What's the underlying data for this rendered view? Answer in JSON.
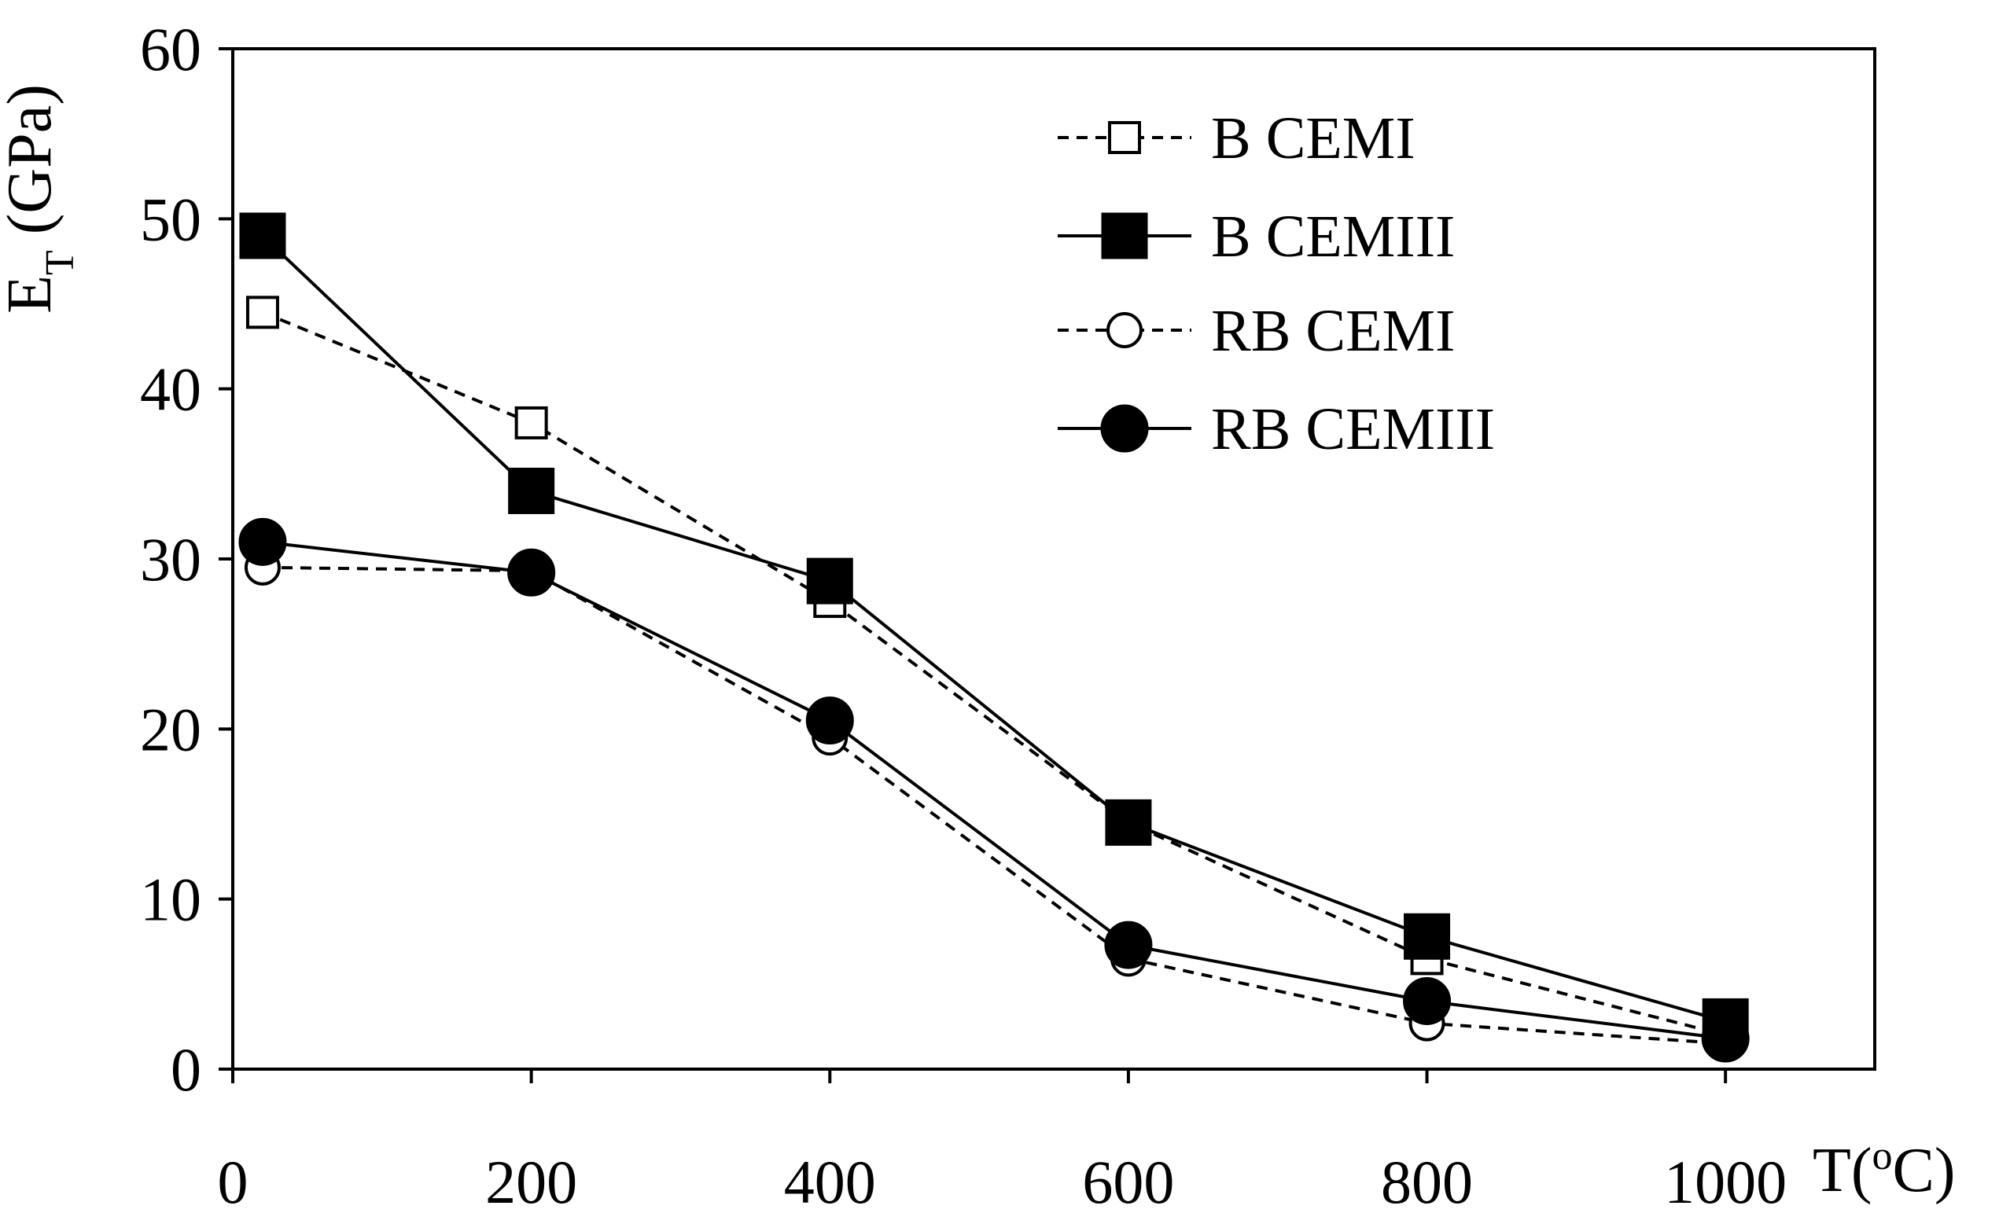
{
  "chart_data": {
    "type": "line",
    "ylabel": {
      "main": "E",
      "sub": "T",
      "rest": " (GPa)"
    },
    "xlabel": {
      "main": "T(",
      "sup": "o",
      "rest": "C)"
    },
    "xlim": [
      0,
      1100
    ],
    "ylim": [
      0,
      60
    ],
    "x_ticks": [
      0,
      200,
      400,
      600,
      800,
      1000
    ],
    "y_ticks": [
      0,
      10,
      20,
      30,
      40,
      50,
      60
    ],
    "x_tick_labels": [
      "0",
      "200",
      "400",
      "600",
      "800",
      "1000"
    ],
    "y_tick_labels": [
      "0",
      "10",
      "20",
      "30",
      "40",
      "50",
      "60"
    ],
    "grid": false,
    "legend_position": "top-right",
    "series": [
      {
        "name": "B CEMI",
        "marker": "square-open",
        "line": "dashed",
        "x": [
          20,
          200,
          400,
          600,
          800,
          1000
        ],
        "y": [
          44.5,
          38.0,
          27.5,
          14.5,
          6.5,
          2.0
        ]
      },
      {
        "name": "B CEMIII",
        "marker": "square-filled",
        "line": "solid",
        "x": [
          20,
          200,
          400,
          600,
          800,
          1000
        ],
        "y": [
          49.0,
          34.0,
          28.7,
          14.5,
          7.8,
          2.8
        ]
      },
      {
        "name": " RB CEMI",
        "marker": "circle-open",
        "line": "dashed",
        "x": [
          20,
          200,
          400,
          600,
          800,
          1000
        ],
        "y": [
          29.5,
          29.3,
          19.5,
          6.5,
          2.7,
          1.5
        ]
      },
      {
        "name": "RB CEMIII",
        "marker": "circle-filled",
        "line": "solid",
        "x": [
          20,
          200,
          400,
          600,
          800,
          1000
        ],
        "y": [
          31.0,
          29.2,
          20.5,
          7.3,
          4.0,
          1.8
        ]
      }
    ]
  }
}
